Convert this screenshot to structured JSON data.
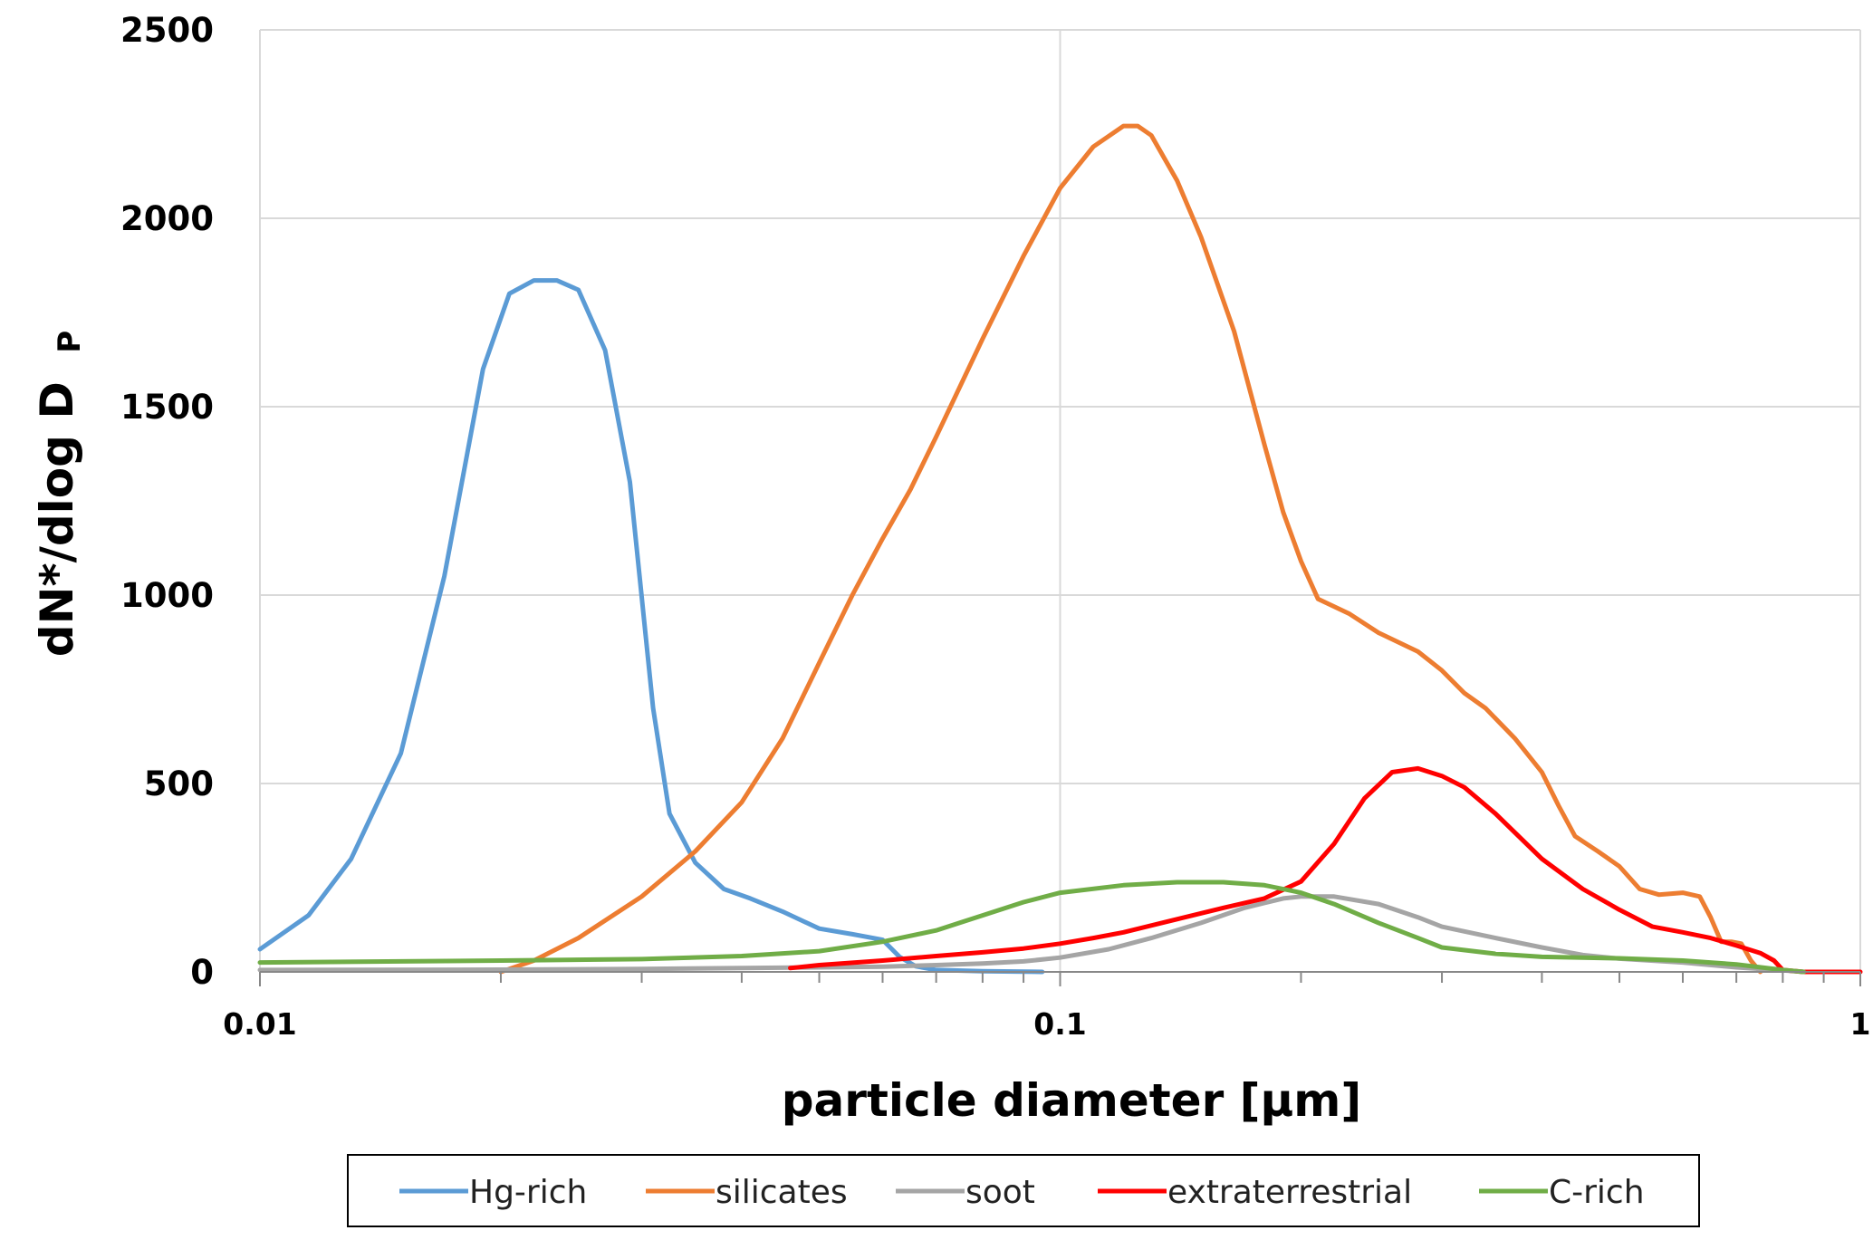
{
  "chart_data": {
    "type": "line",
    "xlabel": "particle diameter [µm]",
    "ylabel_main": "dN*/dlog D",
    "ylabel_sub": "P",
    "x_scale": "log",
    "xlim": [
      0.01,
      1
    ],
    "ylim": [
      0,
      2500
    ],
    "x_ticks": [
      {
        "value": 0.01,
        "label": "0.01"
      },
      {
        "value": 0.1,
        "label": "0.1"
      },
      {
        "value": 1,
        "label": "1"
      }
    ],
    "y_ticks": [
      {
        "value": 0,
        "label": "0"
      },
      {
        "value": 500,
        "label": "500"
      },
      {
        "value": 1000,
        "label": "1000"
      },
      {
        "value": 1500,
        "label": "1500"
      },
      {
        "value": 2000,
        "label": "2000"
      },
      {
        "value": 2500,
        "label": "2500"
      }
    ],
    "grid": true,
    "legend_position": "bottom",
    "series": [
      {
        "name": "Hg-rich",
        "color": "#5B9BD5",
        "points": [
          [
            0.01,
            60
          ],
          [
            0.0115,
            150
          ],
          [
            0.013,
            300
          ],
          [
            0.015,
            580
          ],
          [
            0.017,
            1050
          ],
          [
            0.019,
            1600
          ],
          [
            0.0205,
            1800
          ],
          [
            0.022,
            1835
          ],
          [
            0.0235,
            1835
          ],
          [
            0.025,
            1810
          ],
          [
            0.027,
            1650
          ],
          [
            0.029,
            1300
          ],
          [
            0.031,
            700
          ],
          [
            0.0325,
            420
          ],
          [
            0.035,
            290
          ],
          [
            0.038,
            220
          ],
          [
            0.041,
            195
          ],
          [
            0.045,
            160
          ],
          [
            0.05,
            115
          ],
          [
            0.055,
            100
          ],
          [
            0.06,
            85
          ],
          [
            0.063,
            40
          ],
          [
            0.066,
            15
          ],
          [
            0.07,
            5
          ],
          [
            0.08,
            2
          ],
          [
            0.095,
            0
          ]
        ]
      },
      {
        "name": "silicates",
        "color": "#ED7D31",
        "points": [
          [
            0.02,
            0
          ],
          [
            0.022,
            30
          ],
          [
            0.025,
            90
          ],
          [
            0.03,
            200
          ],
          [
            0.035,
            320
          ],
          [
            0.04,
            450
          ],
          [
            0.045,
            620
          ],
          [
            0.05,
            820
          ],
          [
            0.055,
            1000
          ],
          [
            0.06,
            1150
          ],
          [
            0.065,
            1280
          ],
          [
            0.07,
            1420
          ],
          [
            0.08,
            1680
          ],
          [
            0.09,
            1900
          ],
          [
            0.1,
            2080
          ],
          [
            0.11,
            2190
          ],
          [
            0.12,
            2245
          ],
          [
            0.125,
            2245
          ],
          [
            0.13,
            2220
          ],
          [
            0.14,
            2100
          ],
          [
            0.15,
            1950
          ],
          [
            0.165,
            1700
          ],
          [
            0.18,
            1400
          ],
          [
            0.19,
            1220
          ],
          [
            0.2,
            1090
          ],
          [
            0.21,
            990
          ],
          [
            0.23,
            950
          ],
          [
            0.25,
            900
          ],
          [
            0.28,
            850
          ],
          [
            0.3,
            800
          ],
          [
            0.32,
            740
          ],
          [
            0.34,
            700
          ],
          [
            0.37,
            620
          ],
          [
            0.4,
            530
          ],
          [
            0.42,
            440
          ],
          [
            0.44,
            360
          ],
          [
            0.47,
            320
          ],
          [
            0.5,
            280
          ],
          [
            0.53,
            220
          ],
          [
            0.56,
            205
          ],
          [
            0.6,
            210
          ],
          [
            0.63,
            200
          ],
          [
            0.65,
            145
          ],
          [
            0.67,
            80
          ],
          [
            0.69,
            80
          ],
          [
            0.71,
            75
          ],
          [
            0.73,
            30
          ],
          [
            0.75,
            0
          ]
        ]
      },
      {
        "name": "soot",
        "color": "#A5A5A5",
        "points": [
          [
            0.01,
            5
          ],
          [
            0.02,
            6
          ],
          [
            0.03,
            8
          ],
          [
            0.04,
            10
          ],
          [
            0.05,
            12
          ],
          [
            0.06,
            14
          ],
          [
            0.07,
            18
          ],
          [
            0.08,
            22
          ],
          [
            0.09,
            28
          ],
          [
            0.1,
            38
          ],
          [
            0.115,
            60
          ],
          [
            0.13,
            90
          ],
          [
            0.15,
            130
          ],
          [
            0.17,
            170
          ],
          [
            0.19,
            195
          ],
          [
            0.2,
            200
          ],
          [
            0.22,
            200
          ],
          [
            0.25,
            180
          ],
          [
            0.28,
            145
          ],
          [
            0.3,
            120
          ],
          [
            0.35,
            90
          ],
          [
            0.4,
            65
          ],
          [
            0.45,
            45
          ],
          [
            0.5,
            35
          ],
          [
            0.6,
            25
          ],
          [
            0.7,
            12
          ],
          [
            0.8,
            4
          ],
          [
            0.85,
            0
          ]
        ]
      },
      {
        "name": "extraterrestrial",
        "color": "#FF0000",
        "points": [
          [
            0.046,
            10
          ],
          [
            0.05,
            18
          ],
          [
            0.06,
            30
          ],
          [
            0.07,
            42
          ],
          [
            0.08,
            52
          ],
          [
            0.09,
            62
          ],
          [
            0.1,
            75
          ],
          [
            0.11,
            90
          ],
          [
            0.12,
            105
          ],
          [
            0.14,
            140
          ],
          [
            0.16,
            170
          ],
          [
            0.18,
            195
          ],
          [
            0.2,
            240
          ],
          [
            0.22,
            340
          ],
          [
            0.24,
            460
          ],
          [
            0.26,
            530
          ],
          [
            0.28,
            540
          ],
          [
            0.3,
            520
          ],
          [
            0.32,
            490
          ],
          [
            0.35,
            420
          ],
          [
            0.4,
            300
          ],
          [
            0.45,
            220
          ],
          [
            0.5,
            165
          ],
          [
            0.55,
            120
          ],
          [
            0.6,
            105
          ],
          [
            0.65,
            90
          ],
          [
            0.7,
            70
          ],
          [
            0.75,
            50
          ],
          [
            0.78,
            30
          ],
          [
            0.8,
            5
          ],
          [
            0.85,
            0
          ],
          [
            1,
            0
          ]
        ]
      },
      {
        "name": "C-rich",
        "color": "#70AD47",
        "points": [
          [
            0.01,
            25
          ],
          [
            0.015,
            28
          ],
          [
            0.02,
            30
          ],
          [
            0.03,
            34
          ],
          [
            0.04,
            42
          ],
          [
            0.05,
            55
          ],
          [
            0.06,
            80
          ],
          [
            0.07,
            110
          ],
          [
            0.08,
            150
          ],
          [
            0.09,
            185
          ],
          [
            0.1,
            210
          ],
          [
            0.12,
            230
          ],
          [
            0.14,
            238
          ],
          [
            0.16,
            238
          ],
          [
            0.18,
            230
          ],
          [
            0.2,
            210
          ],
          [
            0.22,
            180
          ],
          [
            0.25,
            130
          ],
          [
            0.28,
            90
          ],
          [
            0.3,
            65
          ],
          [
            0.35,
            48
          ],
          [
            0.4,
            40
          ],
          [
            0.5,
            36
          ],
          [
            0.6,
            30
          ],
          [
            0.7,
            20
          ],
          [
            0.8,
            5
          ],
          [
            0.85,
            0
          ]
        ]
      }
    ]
  }
}
